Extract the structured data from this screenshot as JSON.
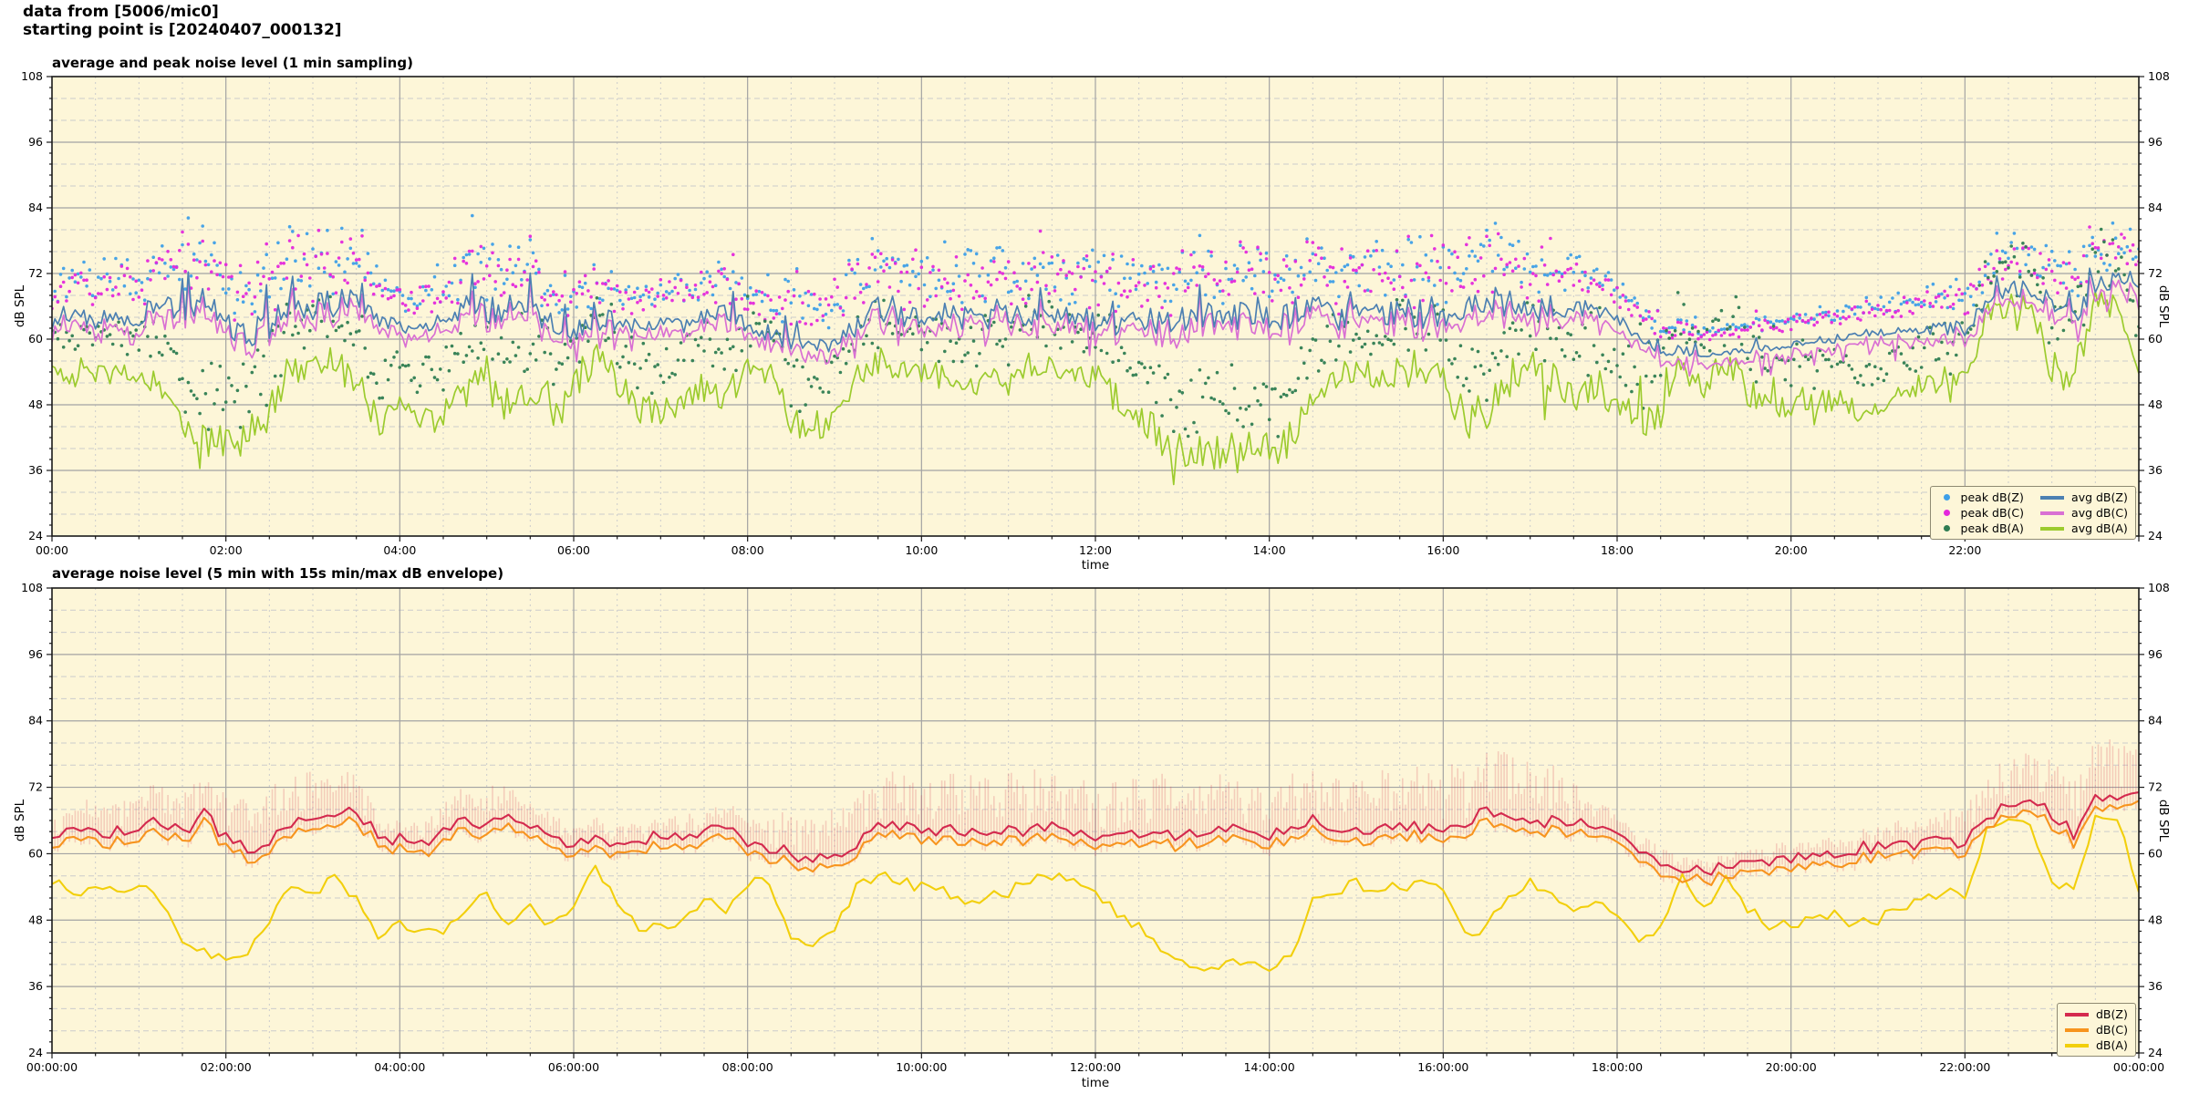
{
  "header": {
    "line1": "data from [5006/mic0]",
    "line2": "starting point is [20240407_000132]"
  },
  "colors": {
    "plot_background": "#fdf6d8",
    "grid_major": "#a3a3a3",
    "grid_minor": "#cccccc",
    "axis_frame": "#1a1a1a",
    "peak_dbz": "#3e9fe8",
    "peak_dbc": "#e428dc",
    "peak_dba": "#2f7d52",
    "avg_dbz": "#4c80b2",
    "avg_dbc": "#d970d3",
    "avg_dba": "#9ccb2e",
    "bot_dbz": "#d42a4e",
    "bot_dbc": "#f7941e",
    "bot_dba": "#f2cf0c",
    "envelope": "rgba(214,60,80,0.22)"
  },
  "chart_data": [
    {
      "type": "line",
      "title": "average and peak noise level (1 min sampling)",
      "xlabel": "time",
      "ylabel_left": "dB SPL",
      "ylabel_right": "dB SPL",
      "x_range_hours": [
        0,
        24
      ],
      "ylim": [
        24,
        108
      ],
      "y_ticks": [
        24,
        36,
        48,
        60,
        72,
        84,
        96,
        108
      ],
      "x_ticks": {
        "hours": [
          0,
          2,
          4,
          6,
          8,
          10,
          12,
          14,
          16,
          18,
          20,
          22
        ],
        "labels": [
          "00:00",
          "02:00",
          "04:00",
          "06:00",
          "08:00",
          "10:00",
          "12:00",
          "14:00",
          "16:00",
          "18:00",
          "20:00",
          "22:00"
        ]
      },
      "anchor_step_h": 0.25,
      "series": [
        {
          "name": "avg dB(Z)",
          "color_key": "avg_dbz",
          "anchors": [
            63,
            64,
            63.5,
            64,
            64.5,
            66,
            64,
            67,
            63,
            61,
            62,
            66,
            66,
            66.5,
            68,
            63,
            62.5,
            62,
            64,
            66,
            65,
            66,
            65,
            63,
            61.5,
            63,
            62,
            62.5,
            63,
            62.5,
            64,
            65,
            62.5,
            61,
            60,
            59,
            59.5,
            62,
            66,
            65,
            64,
            64.5,
            64,
            63.5,
            64,
            64.5,
            65,
            64,
            63.5,
            63,
            63.5,
            63,
            63.5,
            64,
            64,
            64.5,
            63.5,
            64,
            66,
            64,
            64,
            64.5,
            65,
            64.5,
            65,
            66,
            68,
            66,
            65.5,
            66,
            66,
            65,
            64,
            60,
            57.5,
            57,
            57,
            57.5,
            58,
            58.5,
            59,
            59.5,
            60,
            61,
            61,
            61.5,
            62,
            62,
            62,
            66,
            69,
            69.5,
            67,
            63.5,
            70,
            70.5,
            71
          ]
        },
        {
          "name": "avg dB(C)",
          "color_key": "avg_dbc",
          "derived_from": "avg dB(Z)",
          "offset": -1.4
        },
        {
          "name": "avg dB(A)",
          "color_key": "avg_dba",
          "anchors": [
            55,
            53,
            54,
            53,
            54,
            52,
            45,
            42,
            41,
            42,
            47,
            55,
            53,
            56,
            52,
            45,
            47,
            46,
            46,
            49,
            53,
            47,
            50,
            47,
            51,
            57,
            52,
            47,
            47,
            48,
            52,
            49,
            55,
            55,
            45,
            44,
            46,
            54,
            56,
            55,
            54,
            53,
            51,
            52,
            53,
            55,
            56,
            55,
            53,
            49,
            47,
            42,
            40,
            39.5,
            40,
            41,
            39.5,
            42,
            51,
            53,
            55,
            53,
            54,
            55,
            53,
            45,
            47,
            52,
            55,
            53,
            50,
            52,
            48,
            45,
            46,
            56,
            50,
            56,
            50,
            47,
            47,
            48,
            49,
            47,
            48,
            50,
            52,
            53,
            52,
            64,
            66,
            65,
            55,
            53,
            66,
            66,
            54
          ]
        }
      ],
      "variability_hourly": {
        "z": [
          1.2,
          2.2,
          2.6,
          2.8,
          1.2,
          2.6,
          1.6,
          1.4,
          1.4,
          2.8,
          2.4,
          2.4,
          2.4,
          2.4,
          2.6,
          2.4,
          2.8,
          2.8,
          1.0,
          0.5,
          0.7,
          0.8,
          1.4,
          1.8,
          1.8
        ],
        "a": [
          1.5,
          2.5,
          3.5,
          3.5,
          2.5,
          4,
          3,
          2.5,
          3,
          3,
          2.5,
          2.5,
          3,
          3.5,
          3.5,
          3,
          3.5,
          3.5,
          3,
          3.5,
          2.5,
          2,
          2,
          3.5,
          2.5
        ]
      },
      "peak_offsets": {
        "z": 3.5,
        "c": 2.8,
        "a": 4.5
      },
      "legend": {
        "items": [
          {
            "label": "peak dB(Z)",
            "color_key": "peak_dbz",
            "marker": "dot"
          },
          {
            "label": "peak dB(C)",
            "color_key": "peak_dbc",
            "marker": "dot"
          },
          {
            "label": "peak dB(A)",
            "color_key": "peak_dba",
            "marker": "dot"
          },
          {
            "label": "avg dB(Z)",
            "color_key": "avg_dbz",
            "marker": "line"
          },
          {
            "label": "avg dB(C)",
            "color_key": "avg_dbc",
            "marker": "line"
          },
          {
            "label": "avg dB(A)",
            "color_key": "avg_dba",
            "marker": "line"
          }
        ]
      }
    },
    {
      "type": "line",
      "title": "average noise level (5 min with 15s min/max dB envelope)",
      "xlabel": "time",
      "ylabel_left": "dB SPL",
      "ylabel_right": "dB SPL",
      "x_range_hours": [
        0,
        24
      ],
      "ylim": [
        24,
        108
      ],
      "y_ticks": [
        24,
        36,
        48,
        60,
        72,
        84,
        96,
        108
      ],
      "x_ticks": {
        "hours": [
          0,
          2,
          4,
          6,
          8,
          10,
          12,
          14,
          16,
          18,
          20,
          22,
          24
        ],
        "labels": [
          "00:00:00",
          "02:00:00",
          "04:00:00",
          "06:00:00",
          "08:00:00",
          "10:00:00",
          "12:00:00",
          "14:00:00",
          "16:00:00",
          "18:00:00",
          "20:00:00",
          "22:00:00",
          "00:00:00"
        ]
      },
      "anchor_step_h": 0.25,
      "series_note": "dB(Z) and dB(A) reuse the anchor curves of chart 1; dB(C) = dB(Z) - 1.5",
      "envelope_amp_hourly": [
        4,
        6,
        8,
        9,
        3,
        6,
        3,
        3,
        4,
        9,
        9,
        10,
        9,
        11,
        10,
        9,
        11,
        11,
        3,
        2,
        2,
        3,
        6,
        10,
        10
      ],
      "legend": {
        "items": [
          {
            "label": "dB(Z)",
            "color_key": "bot_dbz",
            "marker": "line"
          },
          {
            "label": "dB(C)",
            "color_key": "bot_dbc",
            "marker": "line"
          },
          {
            "label": "dB(A)",
            "color_key": "bot_dba",
            "marker": "line"
          }
        ]
      }
    }
  ]
}
